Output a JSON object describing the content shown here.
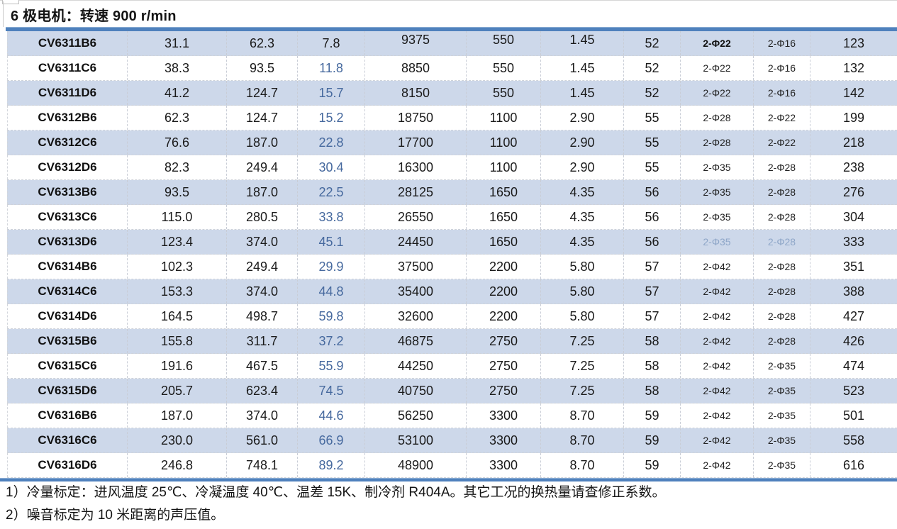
{
  "title": "6 极电机：转速 900 r/min",
  "colors": {
    "accent_bar": "#4f81bd",
    "stripe": "#cdd8ea",
    "blue_text": "#46699e",
    "faded_phi": "#8ea6c8"
  },
  "table": {
    "rows": [
      {
        "model": "CV6311B6",
        "values": [
          "31.1",
          "62.3",
          "7.8",
          "9375",
          "550",
          "1.45",
          "52",
          "2-Φ22",
          "2-Φ16",
          "123"
        ],
        "col4_dark": true,
        "phi_bold": true,
        "raised_mid": true
      },
      {
        "model": "CV6311C6",
        "values": [
          "38.3",
          "93.5",
          "11.8",
          "8850",
          "550",
          "1.45",
          "52",
          "2-Φ22",
          "2-Φ16",
          "132"
        ]
      },
      {
        "model": "CV6311D6",
        "values": [
          "41.2",
          "124.7",
          "15.7",
          "8150",
          "550",
          "1.45",
          "52",
          "2-Φ22",
          "2-Φ16",
          "142"
        ]
      },
      {
        "model": "CV6312B6",
        "values": [
          "62.3",
          "124.7",
          "15.2",
          "18750",
          "1100",
          "2.90",
          "55",
          "2-Φ28",
          "2-Φ22",
          "199"
        ]
      },
      {
        "model": "CV6312C6",
        "values": [
          "76.6",
          "187.0",
          "22.8",
          "17700",
          "1100",
          "2.90",
          "55",
          "2-Φ28",
          "2-Φ22",
          "218"
        ]
      },
      {
        "model": "CV6312D6",
        "values": [
          "82.3",
          "249.4",
          "30.4",
          "16300",
          "1100",
          "2.90",
          "55",
          "2-Φ35",
          "2-Φ28",
          "238"
        ]
      },
      {
        "model": "CV6313B6",
        "values": [
          "93.5",
          "187.0",
          "22.5",
          "28125",
          "1650",
          "4.35",
          "56",
          "2-Φ35",
          "2-Φ28",
          "276"
        ]
      },
      {
        "model": "CV6313C6",
        "values": [
          "115.0",
          "280.5",
          "33.8",
          "26550",
          "1650",
          "4.35",
          "56",
          "2-Φ35",
          "2-Φ28",
          "304"
        ]
      },
      {
        "model": "CV6313D6",
        "values": [
          "123.4",
          "374.0",
          "45.1",
          "24450",
          "1650",
          "4.35",
          "56",
          "2-Φ35",
          "2-Φ28",
          "333"
        ],
        "phi_faded": true
      },
      {
        "model": "CV6314B6",
        "values": [
          "102.3",
          "249.4",
          "29.9",
          "37500",
          "2200",
          "5.80",
          "57",
          "2-Φ42",
          "2-Φ28",
          "351"
        ]
      },
      {
        "model": "CV6314C6",
        "values": [
          "153.3",
          "374.0",
          "44.8",
          "35400",
          "2200",
          "5.80",
          "57",
          "2-Φ42",
          "2-Φ28",
          "388"
        ]
      },
      {
        "model": "CV6314D6",
        "values": [
          "164.5",
          "498.7",
          "59.8",
          "32600",
          "2200",
          "5.80",
          "57",
          "2-Φ42",
          "2-Φ28",
          "427"
        ]
      },
      {
        "model": "CV6315B6",
        "values": [
          "155.8",
          "311.7",
          "37.2",
          "46875",
          "2750",
          "7.25",
          "58",
          "2-Φ42",
          "2-Φ28",
          "426"
        ]
      },
      {
        "model": "CV6315C6",
        "values": [
          "191.6",
          "467.5",
          "55.9",
          "44250",
          "2750",
          "7.25",
          "58",
          "2-Φ42",
          "2-Φ35",
          "474"
        ]
      },
      {
        "model": "CV6315D6",
        "values": [
          "205.7",
          "623.4",
          "74.5",
          "40750",
          "2750",
          "7.25",
          "58",
          "2-Φ42",
          "2-Φ35",
          "523"
        ]
      },
      {
        "model": "CV6316B6",
        "values": [
          "187.0",
          "374.0",
          "44.6",
          "56250",
          "3300",
          "8.70",
          "59",
          "2-Φ42",
          "2-Φ35",
          "501"
        ]
      },
      {
        "model": "CV6316C6",
        "values": [
          "230.0",
          "561.0",
          "66.9",
          "53100",
          "3300",
          "8.70",
          "59",
          "2-Φ42",
          "2-Φ35",
          "558"
        ]
      },
      {
        "model": "CV6316D6",
        "values": [
          "246.8",
          "748.1",
          "89.2",
          "48900",
          "3300",
          "8.70",
          "59",
          "2-Φ42",
          "2-Φ35",
          "616"
        ]
      }
    ]
  },
  "notes": [
    "1）冷量标定：进风温度 25℃、冷凝温度 40℃、温差 15K、制冷剂 R404A。其它工况的换热量请查修正系数。",
    "2）噪音标定为 10 米距离的声压值。"
  ]
}
